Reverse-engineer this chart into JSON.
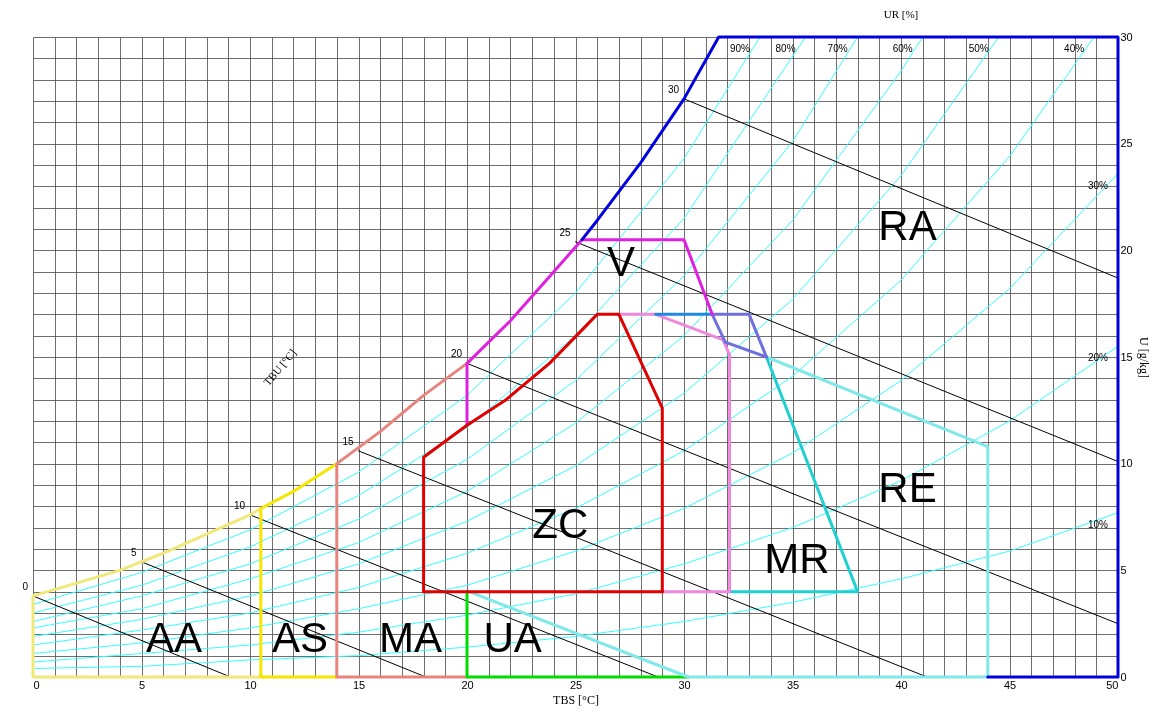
{
  "chart_data": {
    "type": "line",
    "xlabel": "TBS [°C]",
    "ylabel": "U [g/kg]",
    "xlim": [
      0,
      50
    ],
    "ylim": [
      0,
      30
    ],
    "xticks": [
      0,
      {
        "value": 1,
        "label": null
      },
      {
        "value": 2,
        "label": null
      },
      {
        "value": 3,
        "label": null
      },
      {
        "value": 4,
        "label": null
      },
      5,
      {
        "value": 6,
        "label": null
      },
      {
        "value": 7,
        "label": null
      },
      {
        "value": 8,
        "label": null
      },
      {
        "value": 9,
        "label": null
      },
      10,
      {
        "value": 11,
        "label": null
      },
      {
        "value": 12,
        "label": null
      },
      {
        "value": 13,
        "label": null
      },
      {
        "value": 14,
        "label": null
      },
      15,
      {
        "value": 16,
        "label": null
      },
      {
        "value": 17,
        "label": null
      },
      {
        "value": 18,
        "label": null
      },
      {
        "value": 19,
        "label": null
      },
      20,
      {
        "value": 21,
        "label": null
      },
      {
        "value": 22,
        "label": null
      },
      {
        "value": 23,
        "label": null
      },
      {
        "value": 24,
        "label": null
      },
      25,
      {
        "value": 26,
        "label": null
      },
      {
        "value": 27,
        "label": null
      },
      {
        "value": 28,
        "label": null
      },
      {
        "value": 29,
        "label": null
      },
      30,
      {
        "value": 31,
        "label": null
      },
      {
        "value": 32,
        "label": null
      },
      {
        "value": 33,
        "label": null
      },
      {
        "value": 34,
        "label": null
      },
      35,
      {
        "value": 36,
        "label": null
      },
      {
        "value": 37,
        "label": null
      },
      {
        "value": 38,
        "label": null
      },
      {
        "value": 39,
        "label": null
      },
      40,
      {
        "value": 41,
        "label": null
      },
      {
        "value": 42,
        "label": null
      },
      {
        "value": 43,
        "label": null
      },
      {
        "value": 44,
        "label": null
      },
      45,
      {
        "value": 46,
        "label": null
      },
      {
        "value": 47,
        "label": null
      },
      {
        "value": 48,
        "label": null
      },
      {
        "value": 49,
        "label": null
      },
      50
    ],
    "yticks": [
      0,
      {
        "value": 1,
        "label": null
      },
      {
        "value": 2,
        "label": null
      },
      {
        "value": 3,
        "label": null
      },
      {
        "value": 4,
        "label": null
      },
      5,
      {
        "value": 6,
        "label": null
      },
      {
        "value": 7,
        "label": null
      },
      {
        "value": 8,
        "label": null
      },
      {
        "value": 9,
        "label": null
      },
      10,
      {
        "value": 11,
        "label": null
      },
      {
        "value": 12,
        "label": null
      },
      {
        "value": 13,
        "label": null
      },
      {
        "value": 14,
        "label": null
      },
      15,
      {
        "value": 16,
        "label": null
      },
      {
        "value": 17,
        "label": null
      },
      {
        "value": 18,
        "label": null
      },
      {
        "value": 19,
        "label": null
      },
      20,
      {
        "value": 21,
        "label": null
      },
      {
        "value": 22,
        "label": null
      },
      {
        "value": 23,
        "label": null
      },
      {
        "value": 24,
        "label": null
      },
      25,
      {
        "value": 26,
        "label": null
      },
      {
        "value": 27,
        "label": null
      },
      {
        "value": 28,
        "label": null
      },
      {
        "value": 29,
        "label": null
      },
      30
    ],
    "grid": true,
    "annotations": [
      {
        "text": "UR [%]",
        "x": 40,
        "y": 30
      },
      "TBU [°C]",
      "AA",
      "AS",
      "MA",
      "UA",
      "ZC",
      "V",
      "MR",
      "RE",
      "RA"
    ],
    "series": [
      {
        "name": "10%",
        "color": "#33ffff",
        "x": [
          0,
          5,
          10,
          15,
          20,
          25,
          30,
          35,
          40,
          45,
          50
        ],
        "values": [
          0.4,
          0.5,
          0.8,
          1.0,
          1.4,
          1.9,
          2.6,
          3.5,
          4.6,
          5.9,
          7.7
        ]
      },
      {
        "name": "20%",
        "color": "#33ffff",
        "x": [
          0,
          5,
          10,
          15,
          20,
          25,
          30,
          35,
          40,
          45,
          50
        ],
        "values": [
          0.7,
          1.1,
          1.5,
          2.1,
          2.9,
          3.9,
          5.3,
          7.0,
          9.2,
          12.0,
          15.5
        ]
      },
      {
        "name": "30%",
        "color": "#33ffff",
        "x": [
          0,
          5,
          10,
          15,
          20,
          25,
          30,
          35,
          40,
          45,
          50
        ],
        "values": [
          1.1,
          1.6,
          2.3,
          3.2,
          4.3,
          5.9,
          7.9,
          10.5,
          13.9,
          18.2,
          23.6
        ]
      },
      {
        "name": "40%",
        "color": "#33ffff",
        "x": [
          0,
          5,
          10,
          15,
          20,
          25,
          30,
          35,
          40,
          45,
          48.9
        ],
        "values": [
          1.5,
          2.2,
          3.0,
          4.2,
          5.8,
          7.9,
          10.6,
          14.1,
          18.6,
          24.4,
          30
        ]
      },
      {
        "name": "50%",
        "color": "#33ffff",
        "x": [
          0,
          5,
          10,
          15,
          20,
          25,
          30,
          35,
          40,
          44.5
        ],
        "values": [
          1.9,
          2.7,
          3.8,
          5.3,
          7.3,
          9.9,
          13.3,
          17.7,
          23.5,
          30
        ]
      },
      {
        "name": "60%",
        "color": "#33ffff",
        "x": [
          0,
          5,
          10,
          15,
          20,
          25,
          30,
          35,
          40,
          41
        ],
        "values": [
          2.3,
          3.2,
          4.6,
          6.3,
          8.7,
          11.9,
          16.0,
          21.4,
          28.4,
          30
        ]
      },
      {
        "name": "70%",
        "color": "#33ffff",
        "x": [
          0,
          5,
          10,
          15,
          20,
          25,
          30,
          35,
          38
        ],
        "values": [
          2.6,
          3.8,
          5.3,
          7.4,
          10.2,
          13.9,
          18.8,
          25.1,
          30
        ]
      },
      {
        "name": "80%",
        "color": "#33ffff",
        "x": [
          0,
          5,
          10,
          15,
          20,
          25,
          30,
          35.6
        ],
        "values": [
          3.0,
          4.3,
          6.1,
          8.5,
          11.7,
          16.0,
          21.5,
          30
        ]
      },
      {
        "name": "90%",
        "color": "#33ffff",
        "x": [
          0,
          5,
          10,
          15,
          20,
          25,
          30,
          33.5
        ],
        "values": [
          3.4,
          4.9,
          6.9,
          9.6,
          13.2,
          18.0,
          24.3,
          30
        ]
      },
      {
        "name": "0",
        "color": "#000000",
        "x": [
          9.1,
          0
        ],
        "values": [
          0,
          3.8
        ]
      },
      {
        "name": "5",
        "color": "#000000",
        "x": [
          18.1,
          5
        ],
        "values": [
          0,
          5.4
        ]
      },
      {
        "name": "10",
        "color": "#000000",
        "x": [
          28.8,
          10
        ],
        "values": [
          0,
          7.6
        ]
      },
      {
        "name": "15",
        "color": "#000000",
        "x": [
          41.2,
          15
        ],
        "values": [
          0,
          10.6
        ]
      },
      {
        "name": "20",
        "color": "#000000",
        "x": [
          50,
          20
        ],
        "values": [
          2.5,
          14.7
        ]
      },
      {
        "name": "25",
        "color": "#000000",
        "x": [
          50,
          25
        ],
        "values": [
          10.1,
          20.4
        ]
      },
      {
        "name": "30",
        "color": "#000000",
        "x": [
          50,
          30
        ],
        "values": [
          18.7,
          27.1
        ]
      },
      {
        "color": "#f0e878",
        "x": [
          10.5,
          0,
          0,
          2,
          4,
          6,
          8,
          10,
          10.5
        ],
        "values": [
          0,
          0,
          3.8,
          4.4,
          5.0,
          5.8,
          6.7,
          7.6,
          7.9
        ]
      },
      {
        "color": "#f5e600",
        "x": [
          14,
          10.5,
          10.5,
          12,
          14
        ],
        "values": [
          0,
          0,
          7.9,
          8.7,
          10.0
        ]
      },
      {
        "color": "#e8847c",
        "x": [
          20,
          14,
          14,
          16,
          18,
          20
        ],
        "values": [
          0,
          0,
          10.0,
          11.5,
          13.2,
          14.7
        ]
      },
      {
        "color": "#00dd00",
        "x": [
          20,
          20,
          30.2
        ],
        "values": [
          4,
          0,
          0
        ]
      },
      {
        "color": "#80e8e8",
        "x": [
          33.8,
          44,
          44,
          30.2,
          20.1
        ],
        "values": [
          15,
          10.8,
          0,
          0,
          4
        ]
      },
      {
        "color": "#20d0d0",
        "x": [
          33.8,
          38,
          32.1
        ],
        "values": [
          15,
          4,
          4
        ]
      },
      {
        "color": "#ee88dd",
        "x": [
          27,
          28.7,
          31.8,
          32.1,
          32.1,
          29
        ],
        "values": [
          17,
          17,
          15.8,
          15.1,
          4,
          4
        ]
      },
      {
        "color": "#1e88e5",
        "x": [
          28.7,
          31.3
        ],
        "values": [
          17,
          17
        ]
      },
      {
        "color": "#7070dd",
        "x": [
          31.9,
          31.3,
          33,
          33.8
        ],
        "values": [
          15.7,
          17,
          17,
          15
        ]
      },
      {
        "color": "#7070dd",
        "x": [
          31.9,
          33.8
        ],
        "values": [
          15.7,
          15
        ]
      },
      {
        "color": "#e020e0",
        "x": [
          20,
          20,
          22,
          24,
          25.3,
          30,
          31.3
        ],
        "values": [
          11.8,
          14.7,
          16.7,
          19.0,
          20.5,
          20.5,
          17
        ]
      },
      {
        "color": "#0000dd",
        "x": [
          25.3,
          26,
          28,
          30,
          31.6,
          50,
          50,
          44
        ],
        "values": [
          20.5,
          21.4,
          24.1,
          27.1,
          30,
          30,
          0,
          0
        ]
      },
      {
        "color": "#e00000",
        "x": [
          18,
          18,
          20,
          21.8,
          23.8,
          26,
          27,
          29,
          29
        ],
        "values": [
          4,
          10.3,
          11.8,
          13.0,
          14.7,
          17,
          17,
          12.6,
          4
        ]
      },
      {
        "color": "#e00000",
        "x": [
          18,
          29
        ],
        "values": [
          4,
          4
        ]
      }
    ]
  }
}
